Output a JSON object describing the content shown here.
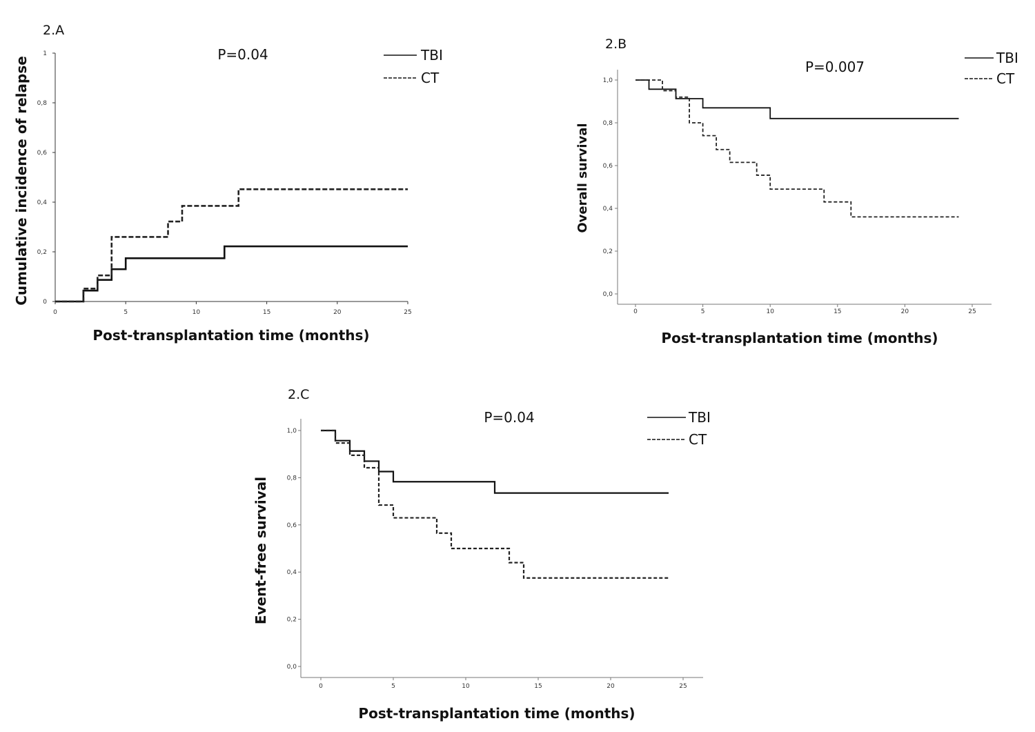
{
  "chart_data": [
    {
      "type": "line",
      "panel_label": "2.A",
      "annotation": "P=0.04",
      "xlabel": "Post-transplantation time (months)",
      "ylabel": "Cumulative incidence of relapse",
      "xlim": [
        0,
        25
      ],
      "ylim": [
        0,
        1
      ],
      "xticks": [
        "0",
        "5",
        "10",
        "15",
        "20",
        "25"
      ],
      "yticks": [
        "0",
        "0,2",
        "0,4",
        "0,6",
        "0,8",
        "1"
      ],
      "legend_position": "top-right",
      "series": [
        {
          "name": "TBI",
          "style": "solid",
          "x": [
            0,
            2,
            3,
            4,
            5,
            12,
            25
          ],
          "y": [
            0,
            0.044,
            0.087,
            0.13,
            0.174,
            0.222,
            0.222
          ]
        },
        {
          "name": "CT",
          "style": "dashed",
          "x": [
            0,
            2,
            3,
            4,
            8,
            9,
            13,
            25
          ],
          "y": [
            0,
            0.052,
            0.105,
            0.26,
            0.322,
            0.385,
            0.452,
            0.452
          ]
        }
      ]
    },
    {
      "type": "line",
      "panel_label": "2.B",
      "annotation": "P=0.007",
      "xlabel": "Post-transplantation time (months)",
      "ylabel": "Overall survival",
      "xlim": [
        0,
        25
      ],
      "ylim": [
        0,
        1
      ],
      "xticks": [
        "0",
        "5",
        "10",
        "15",
        "20",
        "25"
      ],
      "yticks": [
        "0,0",
        "0,2",
        "0,4",
        "0,6",
        "0,8",
        "1,0"
      ],
      "legend_position": "top-right",
      "series": [
        {
          "name": "TBI",
          "style": "solid",
          "x": [
            0,
            1,
            3,
            5,
            10,
            24
          ],
          "y": [
            1.0,
            0.957,
            0.913,
            0.87,
            0.82,
            0.82
          ]
        },
        {
          "name": "CT",
          "style": "dashed",
          "x": [
            0,
            2,
            3,
            4,
            5,
            6,
            7,
            9,
            10,
            14,
            16,
            24
          ],
          "y": [
            1.0,
            0.95,
            0.92,
            0.8,
            0.74,
            0.675,
            0.615,
            0.555,
            0.49,
            0.43,
            0.36,
            0.36
          ]
        }
      ]
    },
    {
      "type": "line",
      "panel_label": "2.C",
      "annotation": "P=0.04",
      "xlabel": "Post-transplantation time (months)",
      "ylabel": "Event-free survival",
      "xlim": [
        0,
        25
      ],
      "ylim": [
        0,
        1
      ],
      "xticks": [
        "0",
        "5",
        "10",
        "15",
        "20",
        "25"
      ],
      "yticks": [
        "0,0",
        "0,2",
        "0,4",
        "0,6",
        "0,8",
        "1,0"
      ],
      "legend_position": "top-right",
      "series": [
        {
          "name": "TBI",
          "style": "solid",
          "x": [
            0,
            1,
            2,
            3,
            4,
            5,
            12,
            24
          ],
          "y": [
            1.0,
            0.957,
            0.913,
            0.87,
            0.826,
            0.783,
            0.735,
            0.735
          ]
        },
        {
          "name": "CT",
          "style": "dashed",
          "x": [
            0,
            1,
            2,
            3,
            4,
            5,
            8,
            9,
            13,
            14,
            24
          ],
          "y": [
            1.0,
            0.947,
            0.895,
            0.842,
            0.684,
            0.63,
            0.565,
            0.5,
            0.44,
            0.375,
            0.375
          ]
        }
      ]
    }
  ],
  "legend_labels": {
    "solid": "TBI",
    "dashed": "CT"
  }
}
